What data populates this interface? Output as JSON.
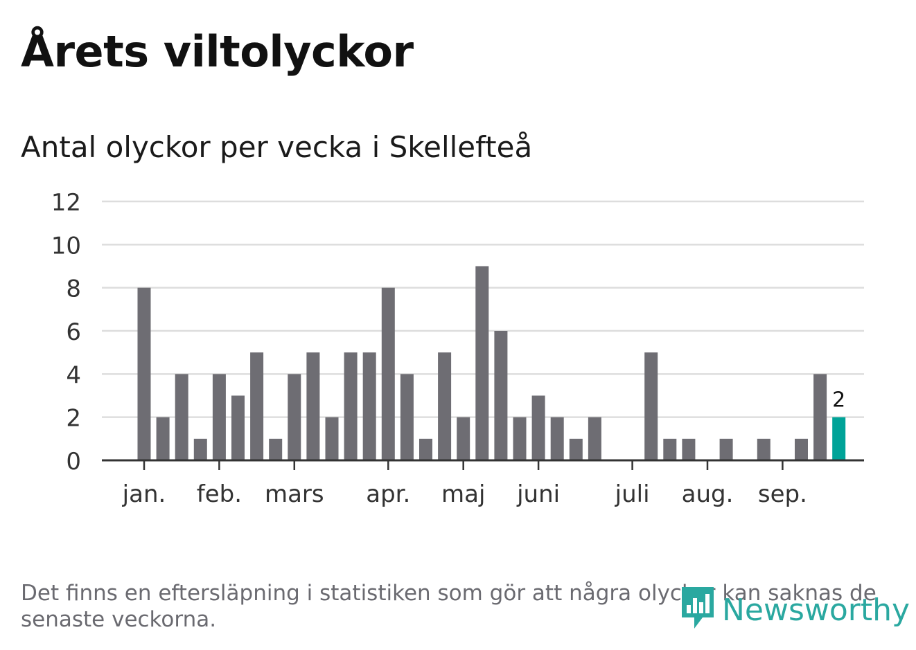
{
  "title": "Årets viltolyckor",
  "footnote": "Det finns en eftersläpning i statistiken som gör att några olyckor kan saknas de senaste veckorna.",
  "logo": {
    "text": "Newsworthy",
    "icon": "bar-chart-speech-icon",
    "color": "#2aa8a0"
  },
  "colors": {
    "bar": "#6e6d73",
    "highlight": "#00a398",
    "grid": "#dddddd",
    "axis": "#333333"
  },
  "chart_data": {
    "type": "bar",
    "title": "Antal olyckor per vecka i Skellefteå",
    "xlabel": "",
    "ylabel": "",
    "ylim": [
      0,
      12
    ],
    "yticks": [
      "0",
      "2",
      "4",
      "6",
      "8",
      "10",
      "12"
    ],
    "grid": true,
    "weeks": [
      1,
      2,
      3,
      4,
      5,
      6,
      7,
      8,
      9,
      10,
      11,
      12,
      13,
      14,
      15,
      16,
      17,
      18,
      19,
      20,
      21,
      22,
      23,
      24,
      25,
      26,
      27,
      28,
      29,
      30,
      31,
      32,
      33,
      34,
      35,
      36,
      37,
      38
    ],
    "values": [
      8,
      2,
      4,
      1,
      4,
      3,
      5,
      1,
      4,
      5,
      2,
      5,
      5,
      8,
      4,
      1,
      5,
      2,
      9,
      6,
      2,
      3,
      2,
      1,
      2,
      0,
      0,
      5,
      1,
      1,
      0,
      1,
      0,
      1,
      0,
      1,
      4,
      2
    ],
    "highlight_index": 37,
    "highlight_label": "2",
    "month_ticks": [
      {
        "label": "jan.",
        "week_index": 0
      },
      {
        "label": "feb.",
        "week_index": 4
      },
      {
        "label": "mars",
        "week_index": 8
      },
      {
        "label": "apr.",
        "week_index": 13
      },
      {
        "label": "maj",
        "week_index": 17
      },
      {
        "label": "juni",
        "week_index": 21
      },
      {
        "label": "juli",
        "week_index": 26
      },
      {
        "label": "aug.",
        "week_index": 30
      },
      {
        "label": "sep.",
        "week_index": 34
      }
    ]
  }
}
